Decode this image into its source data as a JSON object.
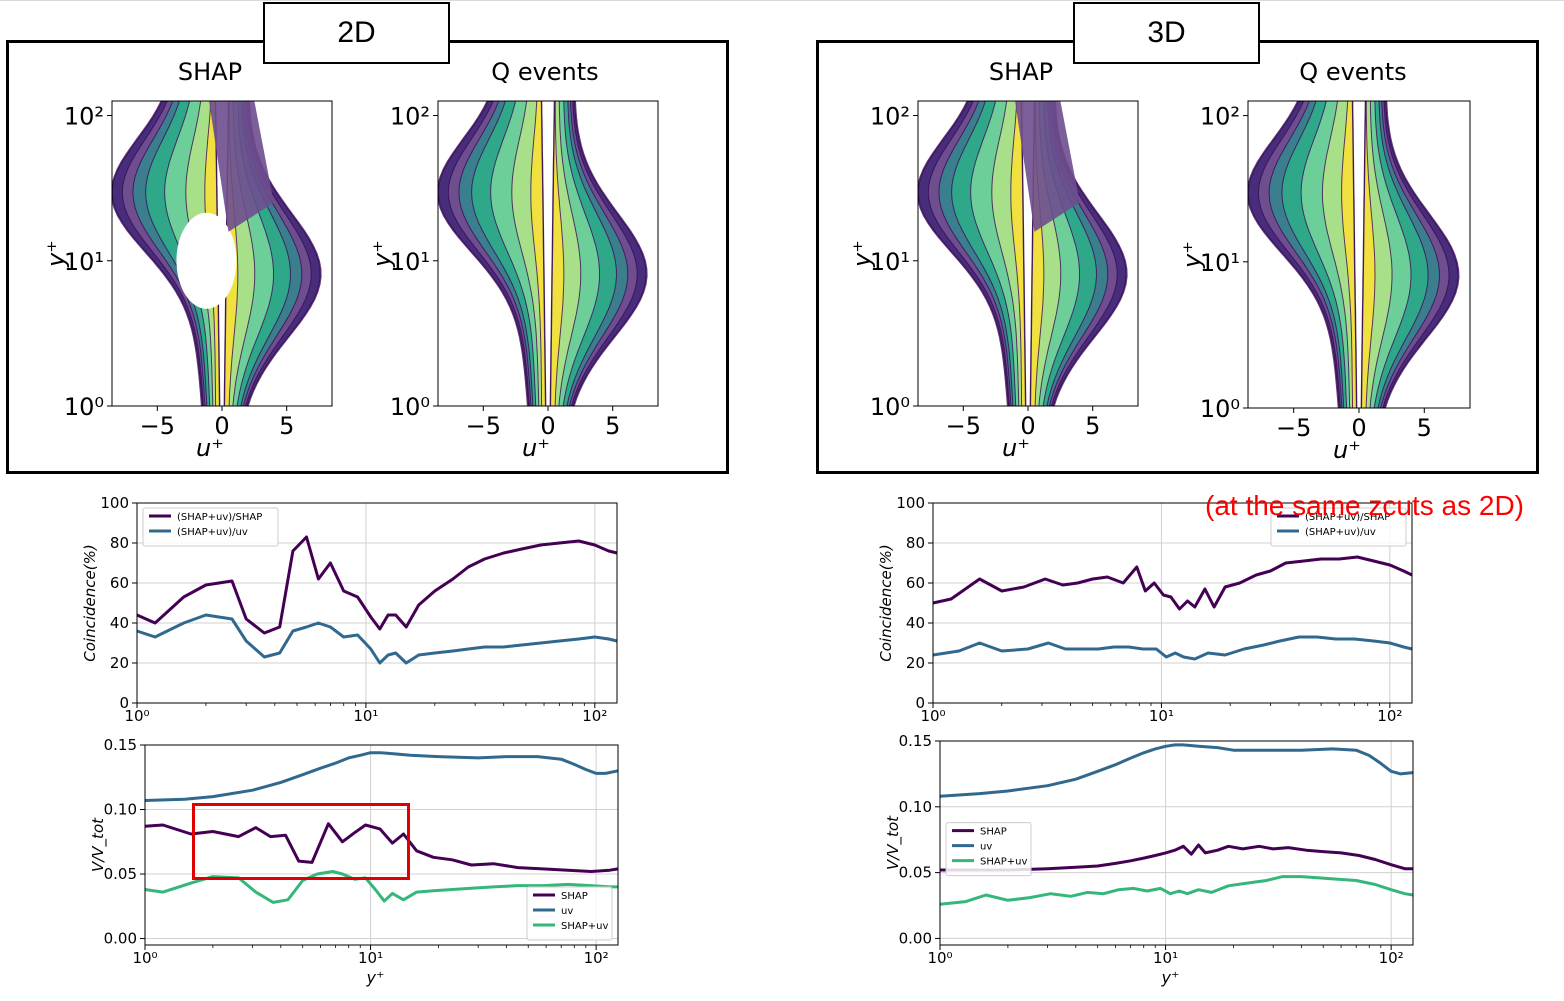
{
  "panels": [
    {
      "label": "2D"
    },
    {
      "label": "3D"
    }
  ],
  "note": "(at the same zcuts as 2D)",
  "colors": {
    "shap": "#440154",
    "uv": "#31688e",
    "shap_uv": "#35b779",
    "frame": "#000000",
    "highlight": "#e00000",
    "note": "#ff0000",
    "contour_levels": [
      "#472d7b",
      "#6e4e8e",
      "#3b7f8e",
      "#2fa88a",
      "#6ccf9a",
      "#a8e08a",
      "#f0e040"
    ]
  },
  "chart_data": [
    {
      "id": "2d-shap-contour",
      "type": "heatmap",
      "title": "SHAP",
      "xlabel": "u⁺",
      "ylabel": "y⁺",
      "xlim": [
        -8.5,
        8.5
      ],
      "ylim_log10": [
        0,
        2.1
      ],
      "xticks": [
        -5,
        0,
        5
      ],
      "xtick_labels": [
        "−5",
        "0",
        "5"
      ],
      "yticks_log10": [
        0,
        1,
        2
      ],
      "ytick_labels": [
        "10⁰",
        "10¹",
        "10²"
      ],
      "grid": false
    },
    {
      "id": "2d-q-contour",
      "type": "heatmap",
      "title": "Q events",
      "xlabel": "u⁺",
      "ylabel": "y⁺",
      "xlim": [
        -8.5,
        8.5
      ],
      "ylim_log10": [
        0,
        2.1
      ],
      "xticks": [
        -5,
        0,
        5
      ],
      "xtick_labels": [
        "−5",
        "0",
        "5"
      ],
      "yticks_log10": [
        0,
        1,
        2
      ],
      "ytick_labels": [
        "10⁰",
        "10¹",
        "10²"
      ],
      "grid": false
    },
    {
      "id": "3d-shap-contour",
      "type": "heatmap",
      "title": "SHAP",
      "xlabel": "u⁺",
      "ylabel": "y⁺",
      "xlim": [
        -8.5,
        8.5
      ],
      "ylim_log10": [
        0,
        2.1
      ],
      "xticks": [
        -5,
        0,
        5
      ],
      "xtick_labels": [
        "−5",
        "0",
        "5"
      ],
      "yticks_log10": [
        0,
        1,
        2
      ],
      "ytick_labels": [
        "10⁰",
        "10¹",
        "10²"
      ],
      "grid": false
    },
    {
      "id": "3d-q-contour",
      "type": "heatmap",
      "title": "Q events",
      "xlabel": "u⁺",
      "ylabel": "y⁺",
      "xlim": [
        -8.5,
        8.5
      ],
      "ylim_log10": [
        0,
        2.1
      ],
      "xticks": [
        -5,
        0,
        5
      ],
      "xtick_labels": [
        "−5",
        "0",
        "5"
      ],
      "yticks_log10": [
        0,
        1,
        2
      ],
      "ytick_labels": [
        "10⁰",
        "10¹",
        "10²"
      ],
      "grid": false
    },
    {
      "id": "2d-coincidence",
      "type": "line",
      "xscale": "log",
      "xlim": [
        1,
        125
      ],
      "ylim": [
        0,
        100
      ],
      "xlabel": "",
      "ylabel": "Coincidence(%)",
      "xticks": [
        1,
        10,
        100
      ],
      "xtick_labels": [
        "10⁰",
        "10¹",
        "10²"
      ],
      "yticks": [
        0,
        20,
        40,
        60,
        80,
        100
      ],
      "ytick_labels": [
        "0",
        "20",
        "40",
        "60",
        "80",
        "100"
      ],
      "grid": true,
      "legend": "top-left",
      "series": [
        {
          "name": "(SHAP+uv)/SHAP",
          "color": "#440154",
          "x": [
            1.0,
            1.2,
            1.6,
            2.0,
            2.6,
            3.0,
            3.6,
            4.2,
            4.8,
            5.5,
            6.2,
            7.0,
            8.0,
            9.2,
            10.5,
            11.5,
            12.5,
            13.5,
            15,
            17,
            20,
            24,
            28,
            33,
            40,
            48,
            58,
            70,
            85,
            100,
            115,
            125
          ],
          "y": [
            44,
            40,
            53,
            59,
            61,
            42,
            35,
            38,
            76,
            83,
            62,
            70,
            56,
            53,
            43,
            37,
            44,
            44,
            38,
            49,
            56,
            62,
            68,
            72,
            75,
            77,
            79,
            80,
            81,
            79,
            76,
            75
          ]
        },
        {
          "name": "(SHAP+uv)/uv",
          "color": "#31688e",
          "x": [
            1.0,
            1.2,
            1.6,
            2.0,
            2.6,
            3.0,
            3.6,
            4.2,
            4.8,
            5.5,
            6.2,
            7.0,
            8.0,
            9.2,
            10.5,
            11.5,
            12.5,
            13.5,
            15,
            17,
            20,
            24,
            28,
            33,
            40,
            48,
            58,
            70,
            85,
            100,
            115,
            125
          ],
          "y": [
            36,
            33,
            40,
            44,
            42,
            31,
            23,
            25,
            36,
            38,
            40,
            38,
            33,
            34,
            27,
            20,
            24,
            25,
            20,
            24,
            25,
            26,
            27,
            28,
            28,
            29,
            30,
            31,
            32,
            33,
            32,
            31
          ]
        }
      ]
    },
    {
      "id": "2d-volume",
      "type": "line",
      "xscale": "log",
      "xlim": [
        1,
        125
      ],
      "ylim": [
        -0.005,
        0.15
      ],
      "xlabel": "y⁺",
      "ylabel": "V/V_tot",
      "xticks": [
        1,
        10,
        100
      ],
      "xtick_labels": [
        "10⁰",
        "10¹",
        "10²"
      ],
      "yticks": [
        0,
        0.05,
        0.1,
        0.15
      ],
      "ytick_labels": [
        "0.00",
        "0.05",
        "0.10",
        "0.15"
      ],
      "grid": true,
      "legend": "bottom-right",
      "series": [
        {
          "name": "SHAP",
          "color": "#440154",
          "x": [
            1.0,
            1.2,
            1.6,
            2.0,
            2.6,
            3.1,
            3.6,
            4.2,
            4.8,
            5.5,
            6.5,
            7.5,
            8.5,
            9.5,
            11,
            12.5,
            14,
            16,
            19,
            23,
            28,
            35,
            45,
            58,
            75,
            95,
            115,
            125
          ],
          "y": [
            0.087,
            0.088,
            0.081,
            0.083,
            0.079,
            0.086,
            0.079,
            0.08,
            0.06,
            0.059,
            0.089,
            0.075,
            0.082,
            0.088,
            0.085,
            0.074,
            0.081,
            0.068,
            0.063,
            0.061,
            0.057,
            0.058,
            0.055,
            0.054,
            0.053,
            0.052,
            0.053,
            0.054
          ]
        },
        {
          "name": "uv",
          "color": "#31688e",
          "x": [
            1.0,
            1.5,
            2.0,
            3.0,
            4.0,
            5.0,
            6.0,
            7.0,
            8.0,
            9.0,
            10,
            11,
            13,
            15,
            20,
            30,
            40,
            55,
            70,
            80,
            90,
            100,
            110,
            125
          ],
          "y": [
            0.107,
            0.108,
            0.11,
            0.115,
            0.121,
            0.127,
            0.132,
            0.136,
            0.14,
            0.142,
            0.144,
            0.144,
            0.143,
            0.142,
            0.141,
            0.14,
            0.141,
            0.141,
            0.139,
            0.135,
            0.131,
            0.128,
            0.128,
            0.13
          ]
        },
        {
          "name": "SHAP+uv",
          "color": "#35b779",
          "x": [
            1.0,
            1.2,
            1.6,
            2.0,
            2.6,
            3.1,
            3.7,
            4.3,
            5.0,
            5.8,
            6.8,
            7.5,
            8.5,
            9.5,
            10.5,
            11.5,
            12.5,
            14,
            16,
            19,
            23,
            28,
            35,
            45,
            58,
            75,
            95,
            115,
            125
          ],
          "y": [
            0.038,
            0.036,
            0.043,
            0.048,
            0.047,
            0.036,
            0.028,
            0.03,
            0.045,
            0.05,
            0.052,
            0.05,
            0.046,
            0.047,
            0.038,
            0.029,
            0.035,
            0.03,
            0.036,
            0.037,
            0.038,
            0.039,
            0.04,
            0.041,
            0.041,
            0.042,
            0.041,
            0.04,
            0.04
          ]
        }
      ]
    },
    {
      "id": "3d-coincidence",
      "type": "line",
      "xscale": "log",
      "xlim": [
        1,
        125
      ],
      "ylim": [
        0,
        100
      ],
      "xlabel": "",
      "ylabel": "Coincidence(%)",
      "xticks": [
        1,
        10,
        100
      ],
      "xtick_labels": [
        "10⁰",
        "10¹",
        "10²"
      ],
      "yticks": [
        0,
        20,
        40,
        60,
        80,
        100
      ],
      "ytick_labels": [
        "0",
        "20",
        "40",
        "60",
        "80",
        "100"
      ],
      "grid": true,
      "legend": "top-right",
      "series": [
        {
          "name": "(SHAP+uv)/SHAP",
          "color": "#440154",
          "x": [
            1.0,
            1.2,
            1.6,
            2.0,
            2.5,
            3.1,
            3.7,
            4.3,
            5.0,
            5.8,
            6.8,
            7.8,
            8.5,
            9.3,
            10.2,
            11,
            12,
            13,
            14,
            15.5,
            17,
            19,
            22,
            26,
            30,
            35,
            42,
            50,
            60,
            72,
            85,
            100,
            115,
            125
          ],
          "y": [
            50,
            52,
            62,
            56,
            58,
            62,
            59,
            60,
            62,
            63,
            60,
            68,
            56,
            60,
            54,
            53,
            47,
            51,
            48,
            57,
            48,
            58,
            60,
            64,
            66,
            70,
            71,
            72,
            72,
            73,
            71,
            69,
            66,
            64
          ]
        },
        {
          "name": "(SHAP+uv)/uv",
          "color": "#31688e",
          "x": [
            1.0,
            1.3,
            1.6,
            2.0,
            2.6,
            3.2,
            3.8,
            4.5,
            5.3,
            6.2,
            7.2,
            8.3,
            9.5,
            10.5,
            11.5,
            12.5,
            14,
            16,
            19,
            23,
            28,
            33,
            40,
            48,
            58,
            70,
            85,
            100,
            115,
            125
          ],
          "y": [
            24,
            26,
            30,
            26,
            27,
            30,
            27,
            27,
            27,
            28,
            28,
            27,
            27,
            23,
            25,
            23,
            22,
            25,
            24,
            27,
            29,
            31,
            33,
            33,
            32,
            32,
            31,
            30,
            28,
            27
          ]
        }
      ]
    },
    {
      "id": "3d-volume",
      "type": "line",
      "xscale": "log",
      "xlim": [
        1,
        125
      ],
      "ylim": [
        -0.005,
        0.15
      ],
      "xlabel": "y⁺",
      "ylabel": "V/V_tot",
      "xticks": [
        1,
        10,
        100
      ],
      "xtick_labels": [
        "10⁰",
        "10¹",
        "10²"
      ],
      "yticks": [
        0,
        0.05,
        0.1,
        0.15
      ],
      "ytick_labels": [
        "0.00",
        "0.05",
        "0.10",
        "0.15"
      ],
      "grid": true,
      "legend": "center-left",
      "series": [
        {
          "name": "SHAP",
          "color": "#440154",
          "x": [
            1.0,
            1.5,
            2.0,
            3.0,
            4.0,
            5.0,
            6.0,
            7.0,
            8.0,
            9.0,
            10,
            11,
            12,
            13,
            14,
            15,
            17,
            19,
            22,
            26,
            30,
            35,
            42,
            50,
            60,
            72,
            85,
            100,
            115,
            125
          ],
          "y": [
            0.052,
            0.052,
            0.052,
            0.053,
            0.054,
            0.055,
            0.057,
            0.059,
            0.061,
            0.063,
            0.065,
            0.067,
            0.07,
            0.064,
            0.071,
            0.065,
            0.067,
            0.07,
            0.068,
            0.07,
            0.068,
            0.069,
            0.067,
            0.066,
            0.065,
            0.063,
            0.06,
            0.056,
            0.053,
            0.053
          ]
        },
        {
          "name": "uv",
          "color": "#31688e",
          "x": [
            1.0,
            1.5,
            2.0,
            3.0,
            4.0,
            5.0,
            6.0,
            7.0,
            8.0,
            9.0,
            10,
            11,
            12,
            14,
            17,
            20,
            30,
            40,
            55,
            70,
            80,
            90,
            100,
            110,
            125
          ],
          "y": [
            0.108,
            0.11,
            0.112,
            0.116,
            0.121,
            0.127,
            0.132,
            0.137,
            0.141,
            0.144,
            0.146,
            0.147,
            0.147,
            0.146,
            0.145,
            0.143,
            0.143,
            0.143,
            0.144,
            0.143,
            0.139,
            0.133,
            0.127,
            0.125,
            0.126
          ]
        },
        {
          "name": "SHAP+uv",
          "color": "#35b779",
          "x": [
            1.0,
            1.3,
            1.6,
            2.0,
            2.5,
            3.1,
            3.8,
            4.5,
            5.3,
            6.2,
            7.2,
            8.3,
            9.5,
            10.5,
            11.5,
            12.5,
            14,
            16,
            19,
            23,
            28,
            33,
            40,
            48,
            58,
            70,
            85,
            100,
            115,
            125
          ],
          "y": [
            0.026,
            0.028,
            0.033,
            0.029,
            0.031,
            0.034,
            0.032,
            0.035,
            0.034,
            0.037,
            0.038,
            0.036,
            0.038,
            0.034,
            0.036,
            0.034,
            0.037,
            0.035,
            0.04,
            0.042,
            0.044,
            0.047,
            0.047,
            0.046,
            0.045,
            0.044,
            0.041,
            0.037,
            0.034,
            0.033
          ]
        }
      ]
    }
  ]
}
